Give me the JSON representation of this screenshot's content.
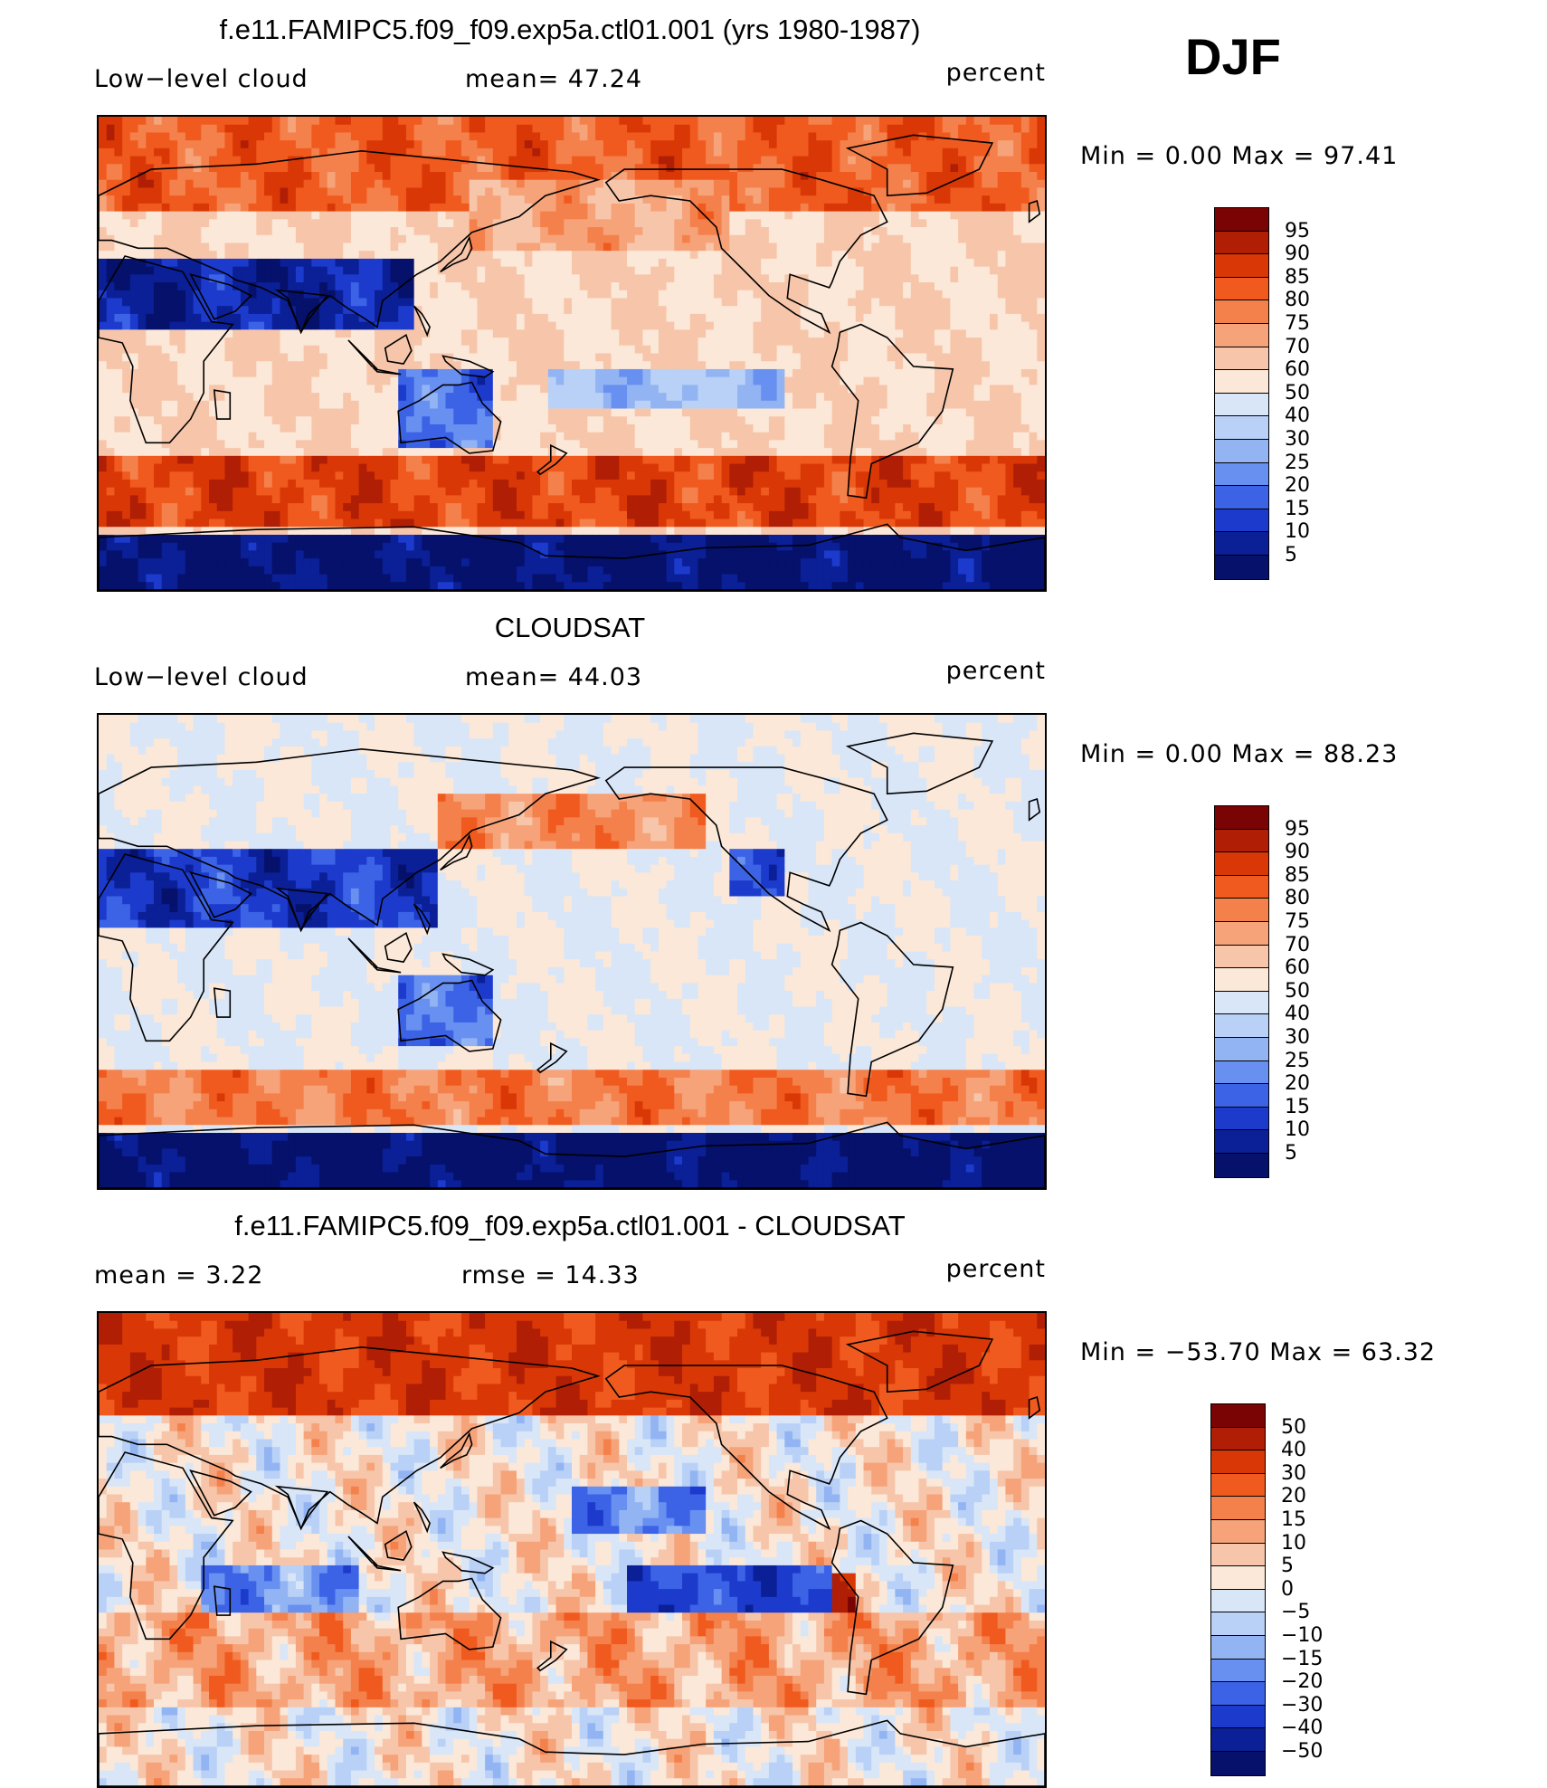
{
  "season": "DJF",
  "panels": [
    {
      "title": "f.e11.FAMIPC5.f09_f09.exp5a.ctl01.001 (yrs 1980-1987)",
      "left_label": "Low−level cloud",
      "center_label": "mean=   47.24",
      "right_label": "percent",
      "minmax": "Min  =     0.00  Max  =    97.41",
      "colorbar_ticks": [
        "95",
        "90",
        "85",
        "80",
        "75",
        "70",
        "60",
        "50",
        "40",
        "30",
        "25",
        "20",
        "15",
        "10",
        "5"
      ],
      "colorbar_colors": [
        "#7a0403",
        "#b01e05",
        "#d93806",
        "#f05a1e",
        "#f4814c",
        "#f6a37a",
        "#f7c6aa",
        "#fbe8d8",
        "#d8e6f8",
        "#b9d1f6",
        "#93b4f3",
        "#6890f0",
        "#3c63e6",
        "#1c3bcc",
        "#0b1f96",
        "#05116a"
      ]
    },
    {
      "title": "CLOUDSAT",
      "left_label": "Low−level cloud",
      "center_label": "mean=   44.03",
      "right_label": "percent",
      "minmax": "Min  =     0.00  Max  =    88.23",
      "colorbar_ticks": [
        "95",
        "90",
        "85",
        "80",
        "75",
        "70",
        "60",
        "50",
        "40",
        "30",
        "25",
        "20",
        "15",
        "10",
        "5"
      ],
      "colorbar_colors": [
        "#7a0403",
        "#b01e05",
        "#d93806",
        "#f05a1e",
        "#f4814c",
        "#f6a37a",
        "#f7c6aa",
        "#fbe8d8",
        "#d8e6f8",
        "#b9d1f6",
        "#93b4f3",
        "#6890f0",
        "#3c63e6",
        "#1c3bcc",
        "#0b1f96",
        "#05116a"
      ]
    },
    {
      "title": "f.e11.FAMIPC5.f09_f09.exp5a.ctl01.001 - CLOUDSAT",
      "left_label": "mean  =     3.22",
      "center_label": "rmse  =    14.33",
      "right_label": "percent",
      "minmax": "Min  =  −53.70  Max  =    63.32",
      "colorbar_ticks": [
        "50",
        "40",
        "30",
        "20",
        "15",
        "10",
        "5",
        "0",
        "−5",
        "−10",
        "−15",
        "−20",
        "−30",
        "−40",
        "−50"
      ],
      "colorbar_colors": [
        "#7a0403",
        "#b01e05",
        "#d93806",
        "#f05a1e",
        "#f4814c",
        "#f6a37a",
        "#f7c6aa",
        "#fbe8d8",
        "#d8e6f8",
        "#b9d1f6",
        "#93b4f3",
        "#6890f0",
        "#3c63e6",
        "#1c3bcc",
        "#0b1f96",
        "#05116a"
      ]
    }
  ]
}
